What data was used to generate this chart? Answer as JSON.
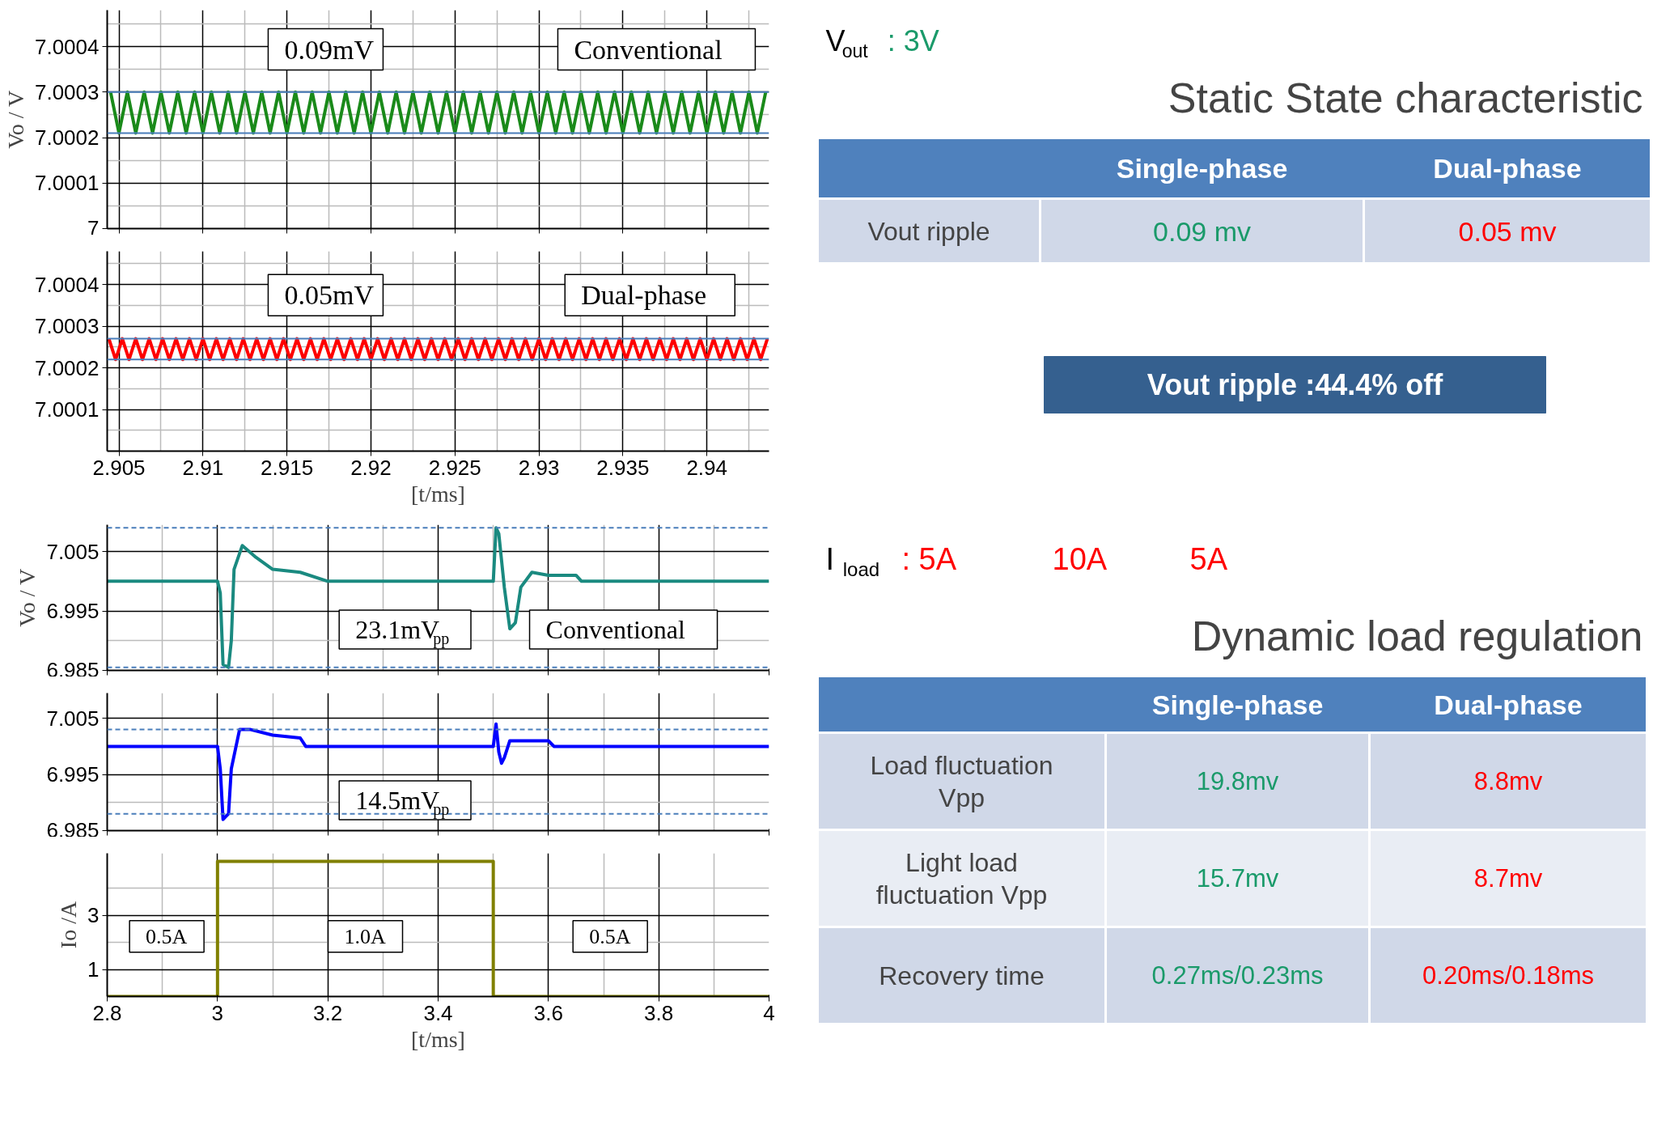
{
  "chart_data": [
    {
      "type": "line",
      "ylabel": "Vo / V",
      "xlim": [
        2.9043,
        2.9437
      ],
      "ylim": [
        7,
        7.00048
      ],
      "xticks": [
        2.905,
        2.91,
        2.915,
        2.92,
        2.925,
        2.93,
        2.935,
        2.94
      ],
      "yticks": [
        7,
        7.0001,
        7.0002,
        7.0003,
        7.0004
      ],
      "tick_labels": "y",
      "grid": true,
      "annotations": [
        "0.09mV",
        "Conventional"
      ],
      "ref_lines": [
        {
          "axis": "y",
          "value": 7.0003,
          "label": null,
          "color": "#4a7ebb",
          "line_style": "solid"
        },
        {
          "axis": "y",
          "value": 7.00021,
          "label": null,
          "color": "#4a7ebb",
          "line_style": "solid"
        }
      ],
      "series": [
        {
          "color": "#1a8a1a",
          "x": [
            2.9045,
            2.905,
            2.9055,
            2.906,
            2.9065,
            2.907,
            2.9075,
            2.908,
            2.9085,
            2.909,
            2.9095,
            2.91,
            2.9105,
            2.911,
            2.9115,
            2.912,
            2.9125,
            2.913,
            2.9135,
            2.914,
            2.9145,
            2.915,
            2.9155,
            2.916,
            2.9165,
            2.917,
            2.9175,
            2.918,
            2.9185,
            2.919,
            2.9195,
            2.92,
            2.9205,
            2.921,
            2.9215,
            2.922,
            2.9225,
            2.923,
            2.9235,
            2.924,
            2.9245,
            2.925,
            2.9255,
            2.926,
            2.9265,
            2.927,
            2.9275,
            2.928,
            2.9285,
            2.929,
            2.9295,
            2.93,
            2.9305,
            2.931,
            2.9315,
            2.932,
            2.9325,
            2.933,
            2.9335,
            2.934,
            2.9345,
            2.935,
            2.9355,
            2.936,
            2.9365,
            2.937,
            2.9375,
            2.938,
            2.9385,
            2.939,
            2.9395,
            2.94,
            2.9405,
            2.941,
            2.9415,
            2.942,
            2.9425,
            2.943,
            2.9435
          ],
          "values": [
            7.0003,
            7.00021,
            7.0003,
            7.00021,
            7.0003,
            7.00021,
            7.0003,
            7.00021,
            7.0003,
            7.00021,
            7.0003,
            7.00021,
            7.0003,
            7.00021,
            7.0003,
            7.00021,
            7.0003,
            7.00021,
            7.0003,
            7.00021,
            7.0003,
            7.00021,
            7.0003,
            7.00021,
            7.0003,
            7.00021,
            7.0003,
            7.00021,
            7.0003,
            7.00021,
            7.0003,
            7.00021,
            7.0003,
            7.00021,
            7.0003,
            7.00021,
            7.0003,
            7.00021,
            7.0003,
            7.00021,
            7.0003,
            7.00021,
            7.0003,
            7.00021,
            7.0003,
            7.00021,
            7.0003,
            7.00021,
            7.0003,
            7.00021,
            7.0003,
            7.00021,
            7.0003,
            7.00021,
            7.0003,
            7.00021,
            7.0003,
            7.00021,
            7.0003,
            7.00021,
            7.0003,
            7.00021,
            7.0003,
            7.00021,
            7.0003,
            7.00021,
            7.0003,
            7.00021,
            7.0003,
            7.00021,
            7.0003,
            7.00021,
            7.0003,
            7.00021,
            7.0003,
            7.00021,
            7.0003,
            7.00021,
            7.0003
          ]
        }
      ]
    },
    {
      "type": "line",
      "xlabel": "[t/ms]",
      "xlim": [
        2.9043,
        2.9437
      ],
      "ylim": [
        7,
        7.00048
      ],
      "xticks": [
        2.905,
        2.91,
        2.915,
        2.92,
        2.925,
        2.93,
        2.935,
        2.94
      ],
      "yticks": [
        7.0001,
        7.0002,
        7.0003,
        7.0004
      ],
      "grid": true,
      "annotations": [
        "0.05mV",
        "Dual-phase"
      ],
      "ref_lines": [
        {
          "axis": "y",
          "value": 7.00027,
          "label": null,
          "color": "#4a7ebb",
          "line_style": "solid"
        },
        {
          "axis": "y",
          "value": 7.00022,
          "label": null,
          "color": "#4a7ebb",
          "line_style": "solid"
        }
      ],
      "series": [
        {
          "color": "#ff0000",
          "x": [
            2.9044,
            2.9048,
            2.9052,
            2.9056,
            2.906,
            2.9064,
            2.9068,
            2.9072,
            2.9076,
            2.908,
            2.9084,
            2.9088,
            2.9092,
            2.9096,
            2.91,
            2.9104,
            2.9108,
            2.9112,
            2.9116,
            2.912,
            2.9124,
            2.9128,
            2.9132,
            2.9136,
            2.914,
            2.9144,
            2.9148,
            2.9152,
            2.9156,
            2.916,
            2.9164,
            2.9168,
            2.9172,
            2.9176,
            2.918,
            2.9184,
            2.9188,
            2.9192,
            2.9196,
            2.92,
            2.9204,
            2.9208,
            2.9212,
            2.9216,
            2.922,
            2.9224,
            2.9228,
            2.9232,
            2.9236,
            2.924,
            2.9244,
            2.9248,
            2.9252,
            2.9256,
            2.926,
            2.9264,
            2.9268,
            2.9272,
            2.9276,
            2.928,
            2.9284,
            2.9288,
            2.9292,
            2.9296,
            2.93,
            2.9304,
            2.9308,
            2.9312,
            2.9316,
            2.932,
            2.9324,
            2.9328,
            2.9332,
            2.9336,
            2.934,
            2.9344,
            2.9348,
            2.9352,
            2.9356,
            2.936,
            2.9364,
            2.9368,
            2.9372,
            2.9376,
            2.938,
            2.9384,
            2.9388,
            2.9392,
            2.9396,
            2.94,
            2.9404,
            2.9408,
            2.9412,
            2.9416,
            2.942,
            2.9424,
            2.9428,
            2.9432,
            2.9436
          ],
          "values": [
            7.00027,
            7.00022,
            7.00027,
            7.00022,
            7.00027,
            7.00022,
            7.00027,
            7.00022,
            7.00027,
            7.00022,
            7.00027,
            7.00022,
            7.00027,
            7.00022,
            7.00027,
            7.00022,
            7.00027,
            7.00022,
            7.00027,
            7.00022,
            7.00027,
            7.00022,
            7.00027,
            7.00022,
            7.00027,
            7.00022,
            7.00027,
            7.00022,
            7.00027,
            7.00022,
            7.00027,
            7.00022,
            7.00027,
            7.00022,
            7.00027,
            7.00022,
            7.00027,
            7.00022,
            7.00027,
            7.00022,
            7.00027,
            7.00022,
            7.00027,
            7.00022,
            7.00027,
            7.00022,
            7.00027,
            7.00022,
            7.00027,
            7.00022,
            7.00027,
            7.00022,
            7.00027,
            7.00022,
            7.00027,
            7.00022,
            7.00027,
            7.00022,
            7.00027,
            7.00022,
            7.00027,
            7.00022,
            7.00027,
            7.00022,
            7.00027,
            7.00022,
            7.00027,
            7.00022,
            7.00027,
            7.00022,
            7.00027,
            7.00022,
            7.00027,
            7.00022,
            7.00027,
            7.00022,
            7.00027,
            7.00022,
            7.00027,
            7.00022,
            7.00027,
            7.00022,
            7.00027,
            7.00022,
            7.00027,
            7.00022,
            7.00027,
            7.00022,
            7.00027,
            7.00022,
            7.00027,
            7.00022,
            7.00027,
            7.00022,
            7.00027,
            7.00022,
            7.00027,
            7.00022,
            7.00027
          ]
        }
      ]
    },
    {
      "type": "other",
      "title": "Static State characteristic",
      "categories": [
        null,
        "Single-phase",
        "Dual-phase"
      ],
      "y_categories": [
        "Vout ripple"
      ],
      "cell_labels": [
        [
          "0.09 mv",
          "0.05 mv"
        ]
      ],
      "annotations": [
        "V$_{out}$ : 3V",
        "Vout ripple :44.4% off"
      ]
    },
    {
      "type": "line",
      "ylabel": "Vo / V",
      "xlim": [
        2.8,
        4
      ],
      "ylim": [
        6.985,
        7.0095
      ],
      "xticks": [
        2.8,
        3,
        3.2,
        3.4,
        3.6,
        3.8,
        4
      ],
      "yticks": [
        6.985,
        6.995,
        7.005
      ],
      "tick_labels": "y",
      "grid": true,
      "annotations": [
        "23.1mV$_{pp}$",
        "Conventional"
      ],
      "ref_lines": [
        {
          "axis": "y",
          "value": 7.009,
          "label": null,
          "color": "#4a7ebb",
          "line_style": "dashed"
        },
        {
          "axis": "y",
          "value": 6.9855,
          "label": null,
          "color": "#4a7ebb",
          "line_style": "dashed"
        }
      ],
      "series": [
        {
          "color": "#1a8a80",
          "x": [
            2.8,
            3.0,
            3.005,
            3.01,
            3.02,
            3.025,
            3.03,
            3.045,
            3.07,
            3.1,
            3.15,
            3.2,
            3.5,
            3.505,
            3.51,
            3.52,
            3.53,
            3.54,
            3.55,
            3.57,
            3.6,
            3.65,
            3.66,
            4.0
          ],
          "values": [
            7.0,
            7.0,
            6.998,
            6.986,
            6.9855,
            6.99,
            7.002,
            7.006,
            7.004,
            7.002,
            7.0015,
            7.0,
            7.0,
            7.009,
            7.008,
            6.999,
            6.992,
            6.993,
            6.999,
            7.0015,
            7.001,
            7.001,
            7.0,
            7.0
          ]
        }
      ]
    },
    {
      "type": "line",
      "xlim": [
        2.8,
        4
      ],
      "ylim": [
        6.985,
        7.0095
      ],
      "xticks": [
        2.8,
        3,
        3.2,
        3.4,
        3.6,
        3.8,
        4
      ],
      "yticks": [
        6.985,
        6.995,
        7.005
      ],
      "tick_labels": "y",
      "grid": true,
      "annotations": [
        "14.5mV$_{pp}$"
      ],
      "ref_lines": [
        {
          "axis": "y",
          "value": 7.003,
          "label": null,
          "color": "#4a7ebb",
          "line_style": "dashed"
        },
        {
          "axis": "y",
          "value": 6.988,
          "label": null,
          "color": "#4a7ebb",
          "line_style": "dashed"
        }
      ],
      "series": [
        {
          "color": "#0000ff",
          "x": [
            2.8,
            3.0,
            3.005,
            3.01,
            3.02,
            3.025,
            3.04,
            3.06,
            3.1,
            3.15,
            3.16,
            3.5,
            3.505,
            3.51,
            3.515,
            3.52,
            3.53,
            3.6,
            3.61,
            4.0
          ],
          "values": [
            7.0,
            7.0,
            6.996,
            6.987,
            6.988,
            6.996,
            7.003,
            7.003,
            7.002,
            7.0015,
            7.0,
            7.0,
            7.004,
            6.999,
            6.997,
            6.998,
            7.001,
            7.001,
            7.0,
            7.0
          ]
        }
      ]
    },
    {
      "type": "line",
      "xlabel": "[t/ms]",
      "ylabel": "Io /A",
      "xlim": [
        2.8,
        4
      ],
      "ylim": [
        0,
        5.3
      ],
      "xticks": [
        2.8,
        3,
        3.2,
        3.4,
        3.6,
        3.8,
        4
      ],
      "yticks": [
        1,
        3
      ],
      "grid": true,
      "annotations": [
        "0.5A",
        "1.0A",
        "0.5A"
      ],
      "series": [
        {
          "color": "#808000",
          "x": [
            2.8,
            3.0,
            3.0,
            3.5,
            3.5,
            4.0
          ],
          "values": [
            0,
            0,
            5,
            5,
            0,
            0
          ]
        }
      ]
    },
    {
      "type": "other",
      "title": "Dynamic load regulation",
      "categories": [
        null,
        "Single-phase",
        "Dual-phase"
      ],
      "y_categories": [
        "Load fluctuation Vpp",
        "Light load fluctuation Vpp",
        "Recovery time"
      ],
      "cell_labels": [
        [
          "19.8mv",
          "8.8mv"
        ],
        [
          "15.7mv",
          "8.7mv"
        ],
        [
          "0.27ms/0.23ms",
          "0.20ms/0.18ms"
        ]
      ],
      "annotations": [
        "I$_{load}$ : 5A",
        "10A",
        "5A"
      ]
    }
  ]
}
